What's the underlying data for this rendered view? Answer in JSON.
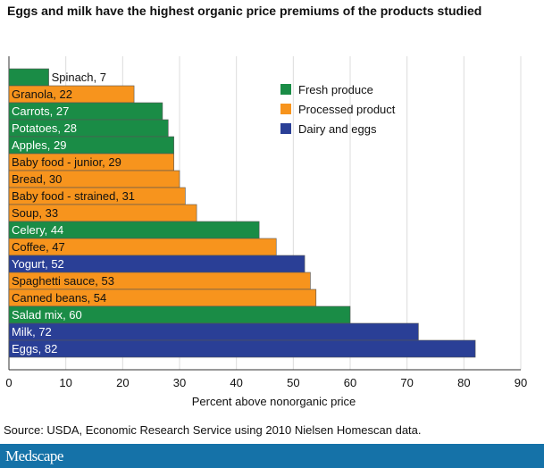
{
  "chart_data": {
    "type": "bar",
    "orientation": "horizontal",
    "title": "Eggs and milk have the highest organic price premiums of the products studied",
    "xlabel": "Percent above nonorganic price",
    "ylabel": "",
    "xlim": [
      0,
      90
    ],
    "xticks": [
      0,
      10,
      20,
      30,
      40,
      50,
      60,
      70,
      80,
      90
    ],
    "grid": true,
    "legend_placement": "top-right",
    "legend": [
      {
        "name": "Fresh produce",
        "color": "#1a8c46"
      },
      {
        "name": "Processed product",
        "color": "#f7941d"
      },
      {
        "name": "Dairy and eggs",
        "color": "#2a3f96"
      }
    ],
    "bars": [
      {
        "label": "Spinach, 7",
        "value": 7,
        "group": 0
      },
      {
        "label": "Granola, 22",
        "value": 22,
        "group": 1
      },
      {
        "label": "Carrots, 27",
        "value": 27,
        "group": 0
      },
      {
        "label": "Potatoes, 28",
        "value": 28,
        "group": 0
      },
      {
        "label": "Apples, 29",
        "value": 29,
        "group": 0
      },
      {
        "label": "Baby food - junior, 29",
        "value": 29,
        "group": 1
      },
      {
        "label": "Bread, 30",
        "value": 30,
        "group": 1
      },
      {
        "label": "Baby food - strained, 31",
        "value": 31,
        "group": 1
      },
      {
        "label": "Soup, 33",
        "value": 33,
        "group": 1
      },
      {
        "label": "Celery, 44",
        "value": 44,
        "group": 0
      },
      {
        "label": "Coffee, 47",
        "value": 47,
        "group": 1
      },
      {
        "label": "Yogurt, 52",
        "value": 52,
        "group": 2
      },
      {
        "label": "Spaghetti sauce, 53",
        "value": 53,
        "group": 1
      },
      {
        "label": "Canned beans, 54",
        "value": 54,
        "group": 1
      },
      {
        "label": "Salad mix, 60",
        "value": 60,
        "group": 0
      },
      {
        "label": "Milk, 72",
        "value": 72,
        "group": 2
      },
      {
        "label": "Eggs, 82",
        "value": 82,
        "group": 2
      }
    ]
  },
  "source": "Source: USDA, Economic Research Service using 2010 Nielsen Homescan data.",
  "brand": "Medscape"
}
